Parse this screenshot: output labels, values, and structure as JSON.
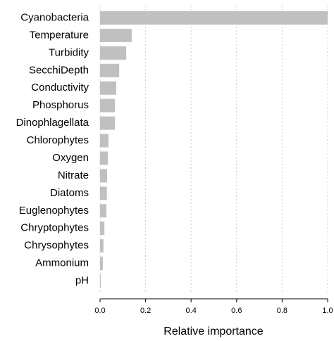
{
  "chart_data": {
    "type": "barh",
    "categories": [
      "Cyanobacteria",
      "Temperature",
      "Turbidity",
      "SecchiDepth",
      "Conductivity",
      "Phosphorus",
      "Dinophlagellata",
      "Chlorophytes",
      "Oxygen",
      "Nitrate",
      "Diatoms",
      "Euglenophytes",
      "Chryptophytes",
      "Chrysophytes",
      "Ammonium",
      "pH"
    ],
    "values": [
      1.0,
      0.139,
      0.115,
      0.084,
      0.071,
      0.065,
      0.065,
      0.037,
      0.034,
      0.031,
      0.03,
      0.028,
      0.019,
      0.015,
      0.012,
      0.003
    ],
    "color": "#c0c0c0",
    "x_label": "Relative importance",
    "xlim": [
      0,
      1
    ],
    "xticks": [
      {
        "value": 0,
        "label": "0.0"
      },
      0.2,
      0.4,
      0.6,
      0.8,
      {
        "value": 1,
        "label": "1.0"
      }
    ],
    "grid": true
  }
}
